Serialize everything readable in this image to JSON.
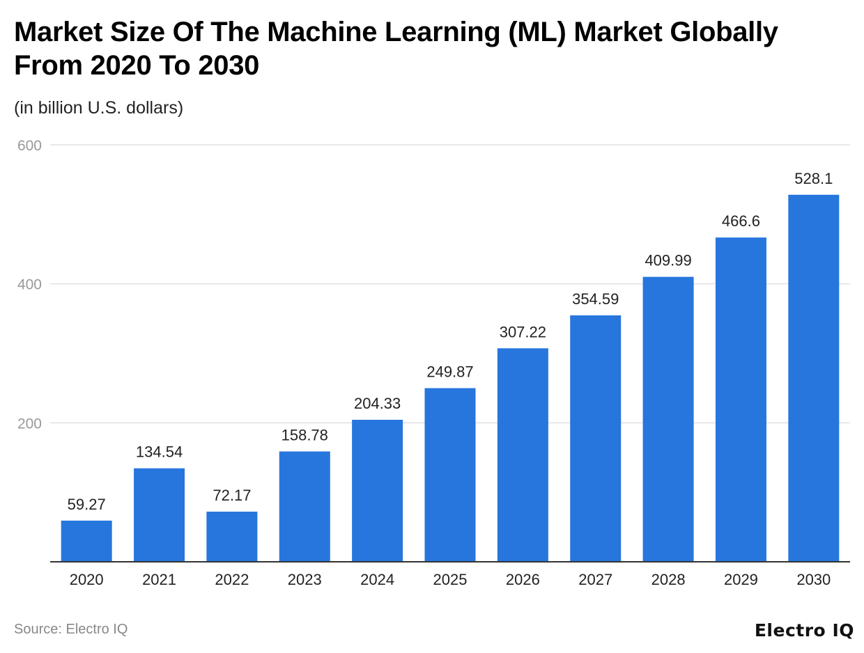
{
  "title": "Market Size Of The Machine Learning (ML) Market Globally From 2020 To 2030",
  "subtitle": "(in billion U.S. dollars)",
  "source": "Source: Electro IQ",
  "logo": "Electro IQ",
  "chart_data": {
    "type": "bar",
    "title": "Market Size Of The Machine Learning (ML) Market Globally From 2020 To 2030",
    "subtitle": "(in billion U.S. dollars)",
    "categories": [
      "2020",
      "2021",
      "2022",
      "2023",
      "2024",
      "2025",
      "2026",
      "2027",
      "2028",
      "2029",
      "2030"
    ],
    "values": [
      59.27,
      134.54,
      72.17,
      158.78,
      204.33,
      249.87,
      307.22,
      354.59,
      409.99,
      466.6,
      528.1
    ],
    "data_labels": [
      "59.27",
      "134.54",
      "72.17",
      "158.78",
      "204.33",
      "249.87",
      "307.22",
      "354.59",
      "409.99",
      "466.6",
      "528.1"
    ],
    "ylim": [
      0,
      600
    ],
    "yticks": [
      200,
      400,
      600
    ],
    "grid": true,
    "bar_color": "#2776dd",
    "xlabel": "",
    "ylabel": ""
  }
}
